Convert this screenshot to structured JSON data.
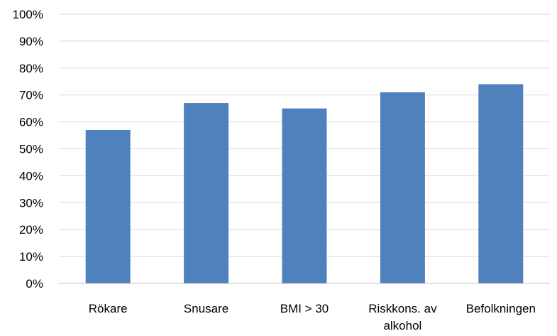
{
  "chart_data": {
    "type": "bar",
    "title": "",
    "xlabel": "",
    "ylabel": "",
    "categories": [
      "Rökare",
      "Snusare",
      "BMI > 30",
      "Riskkons. av alkohol",
      "Befolkningen"
    ],
    "category_lines": [
      [
        "Rökare"
      ],
      [
        "Snusare"
      ],
      [
        "BMI > 30"
      ],
      [
        "Riskkons. av",
        "alkohol"
      ],
      [
        "Befolkningen"
      ]
    ],
    "values": [
      57,
      67,
      65,
      71,
      74
    ],
    "ylim": [
      0,
      100
    ],
    "yticks": [
      0,
      10,
      20,
      30,
      40,
      50,
      60,
      70,
      80,
      90,
      100
    ],
    "ytick_labels": [
      "0%",
      "10%",
      "20%",
      "30%",
      "40%",
      "50%",
      "60%",
      "70%",
      "80%",
      "90%",
      "100%"
    ],
    "grid": true,
    "legend": "none",
    "colors": {
      "bar": "#4f81bd",
      "grid": "#d9d9d9",
      "axis": "#bfbfbf",
      "text": "#000000"
    }
  }
}
